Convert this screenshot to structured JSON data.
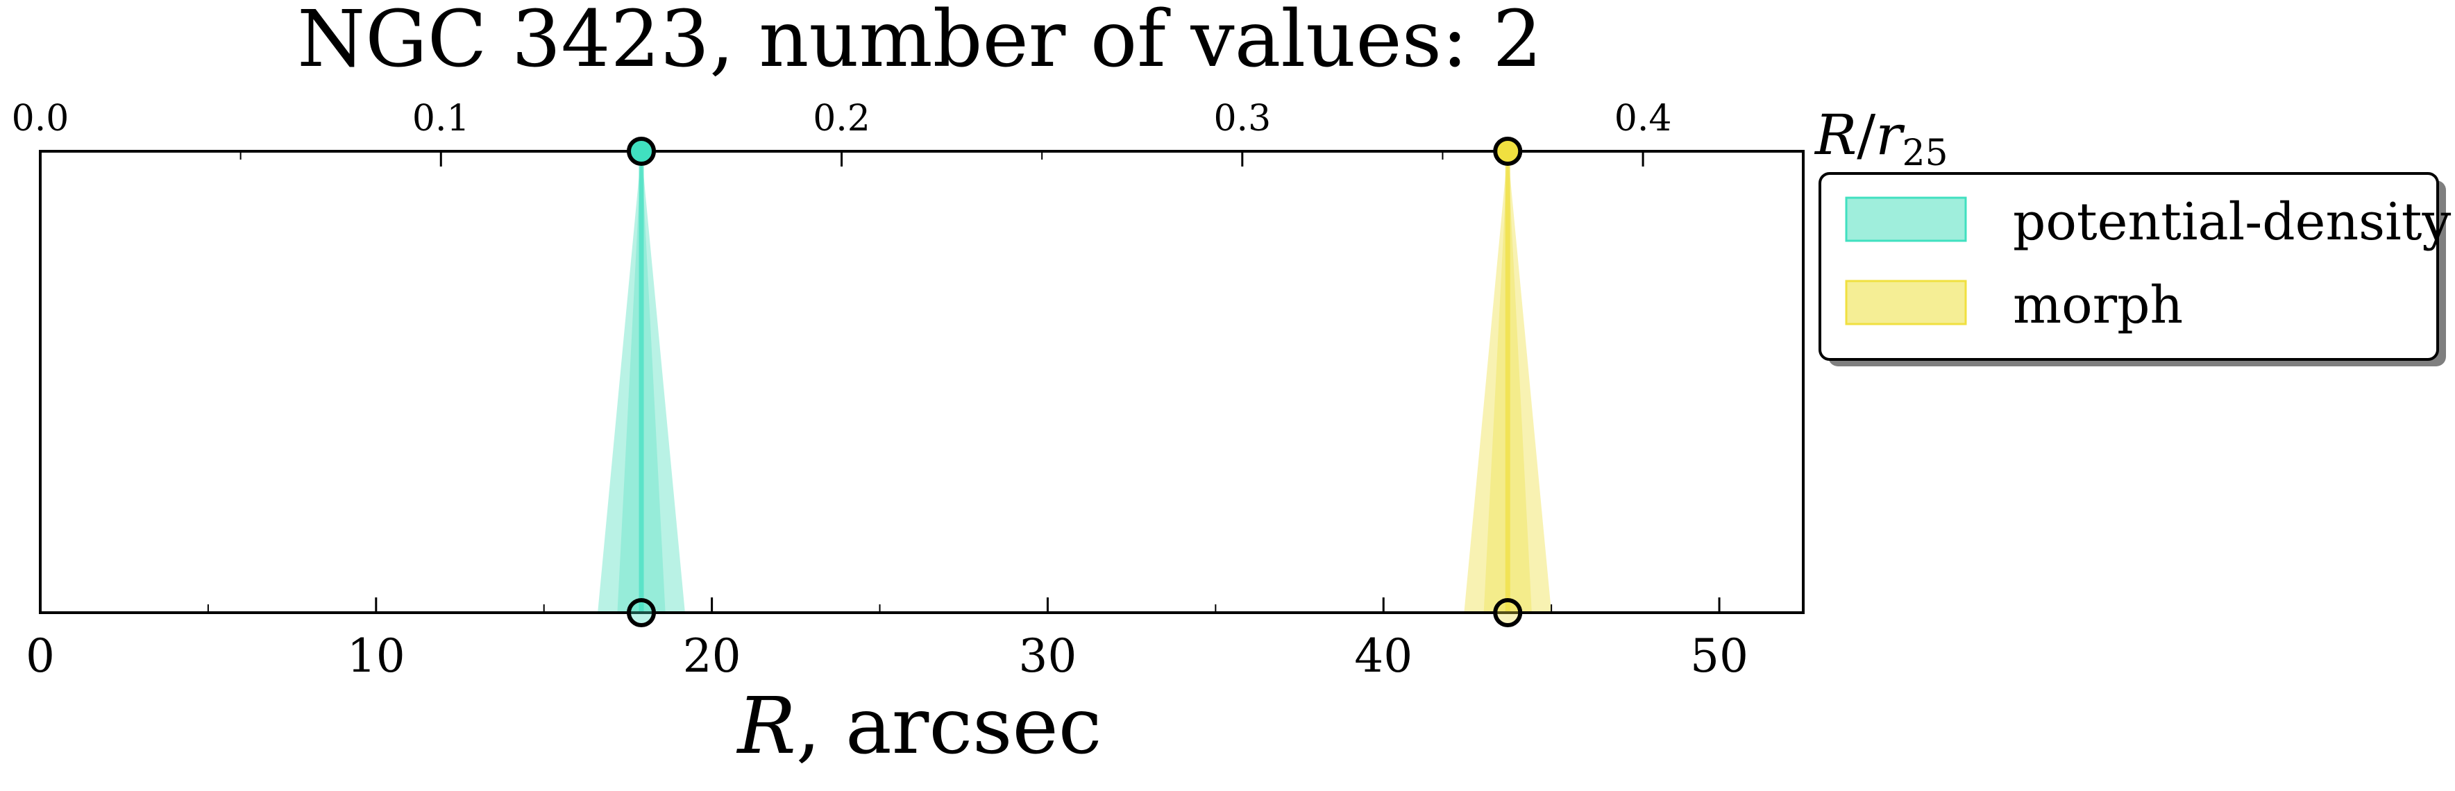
{
  "chart_data": {
    "type": "area",
    "title": "NGC 3423, number of values: 2",
    "xlabel": "R, arcsec",
    "xlabel_italic_part": "R",
    "xlabel_rest": ", arcsec",
    "xlim": [
      0,
      52.5
    ],
    "x_ticks": [
      0,
      10,
      20,
      30,
      40,
      50
    ],
    "x_tick_labels": [
      "0",
      "10",
      "20",
      "30",
      "40",
      "50"
    ],
    "top_axis_label": "R/r25",
    "top_xlim": [
      0,
      0.44
    ],
    "top_ticks": [
      0.0,
      0.1,
      0.2,
      0.3,
      0.4
    ],
    "top_tick_labels": [
      "0.0",
      "0.1",
      "0.2",
      "0.3",
      "0.4"
    ],
    "grid": false,
    "legend_position": "right, top",
    "series": [
      {
        "name": "potential-density",
        "x": 17.9,
        "x_error": 1.3,
        "color": "#40e0c0",
        "fill": "#7fe8d0"
      },
      {
        "name": "morph",
        "x": 43.7,
        "x_error": 1.3,
        "color": "#f0e040",
        "fill": "#f2e872"
      }
    ]
  }
}
